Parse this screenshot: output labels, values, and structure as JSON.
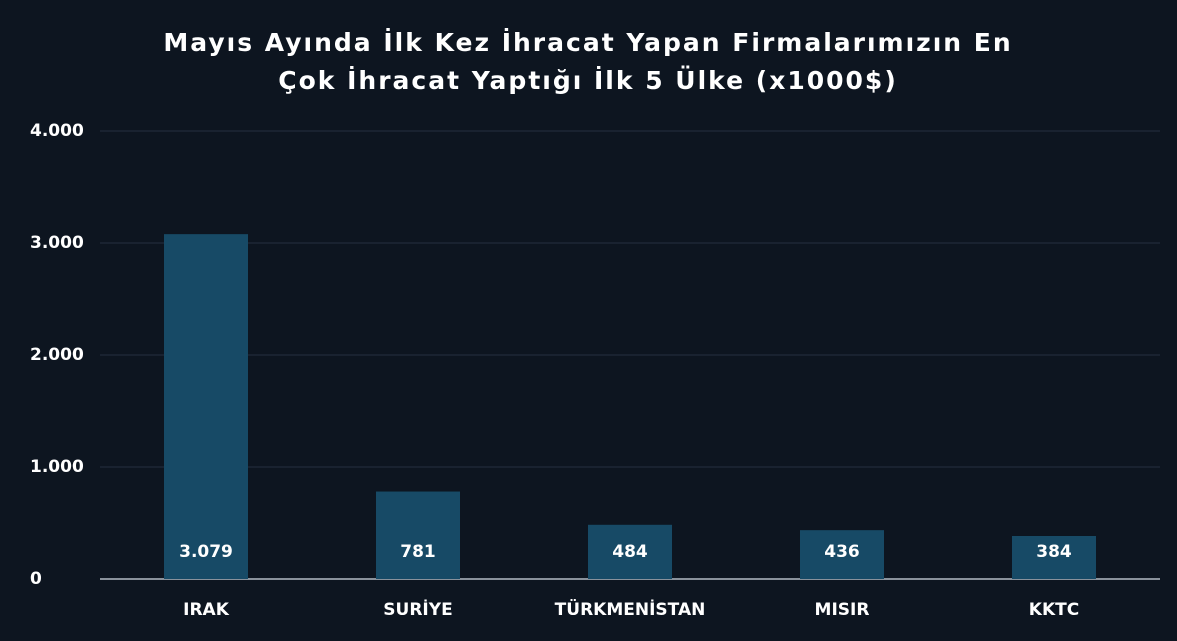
{
  "chart_data": {
    "type": "bar",
    "title": [
      "Mayıs Ayında İlk Kez İhracat Yapan Firmalarımızın En",
      "Çok İhracat Yaptığı İlk 5 Ülke (x1000$)"
    ],
    "categories": [
      "IRAK",
      "SURİYE",
      "TÜRKMENİSTAN",
      "MISIR",
      "KKTC"
    ],
    "values": [
      3079,
      781,
      484,
      436,
      384
    ],
    "value_labels": [
      "3.079",
      "781",
      "484",
      "436",
      "384"
    ],
    "color": "#174a66",
    "ylim": [
      0,
      4000
    ],
    "yticks": [
      0,
      {
        "value": 1000,
        "label": "1.000"
      },
      {
        "value": 2000,
        "label": "2.000"
      },
      {
        "value": 3000,
        "label": "3.000"
      },
      {
        "value": 4000,
        "label": "4.000"
      }
    ],
    "grid": true
  }
}
